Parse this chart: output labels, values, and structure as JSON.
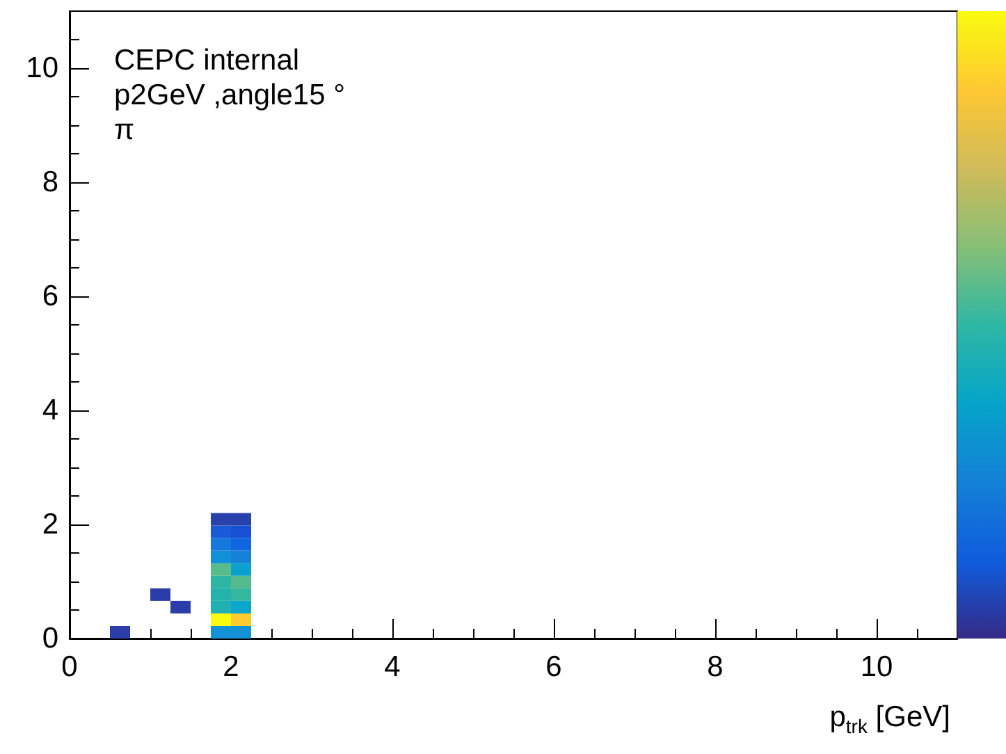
{
  "chart_data": {
    "type": "scatter",
    "xlabel": "p$_{trk}$ [GeV]",
    "annotations": [
      "CEPC internal",
      "p2GeV ,angle15 °",
      "π"
    ],
    "x": [
      0.625,
      1.125,
      1.375,
      1.875,
      1.875,
      1.875,
      1.875,
      1.875,
      1.875,
      1.875,
      1.875,
      1.875,
      1.875,
      2.125,
      2.125,
      2.125,
      2.125,
      2.125,
      2.125,
      2.125,
      2.125,
      2.125,
      2.125
    ],
    "values": [
      0.11,
      0.77,
      0.55,
      0.11,
      0.33,
      0.55,
      0.77,
      0.99,
      1.21,
      1.43,
      1.65,
      1.87,
      2.09,
      0.11,
      0.33,
      0.55,
      0.77,
      0.99,
      1.21,
      1.43,
      1.65,
      1.87,
      2.09
    ],
    "colors": [
      "#2b3da8",
      "#2b3da8",
      "#2b3da8",
      "#1392d6",
      "#f9fb0e",
      "#20b0b4",
      "#24b3ab",
      "#2db7a3",
      "#58bb8c",
      "#1190d8",
      "#1478dc",
      "#1a5ad8",
      "#2941ad",
      "#1392d6",
      "#fdcb2e",
      "#0ca6cb",
      "#33b89f",
      "#55bb8e",
      "#0ca2cf",
      "#1582d8",
      "#0f66e0",
      "#1750d2",
      "#2941ad"
    ],
    "marker": "square",
    "xlim": [
      0,
      11
    ],
    "xticks": [
      0,
      2,
      4,
      6,
      8,
      10
    ],
    "ylim": [
      0,
      11
    ],
    "yticks": [
      0,
      2,
      4,
      6,
      8,
      10
    ],
    "grid": false
  }
}
